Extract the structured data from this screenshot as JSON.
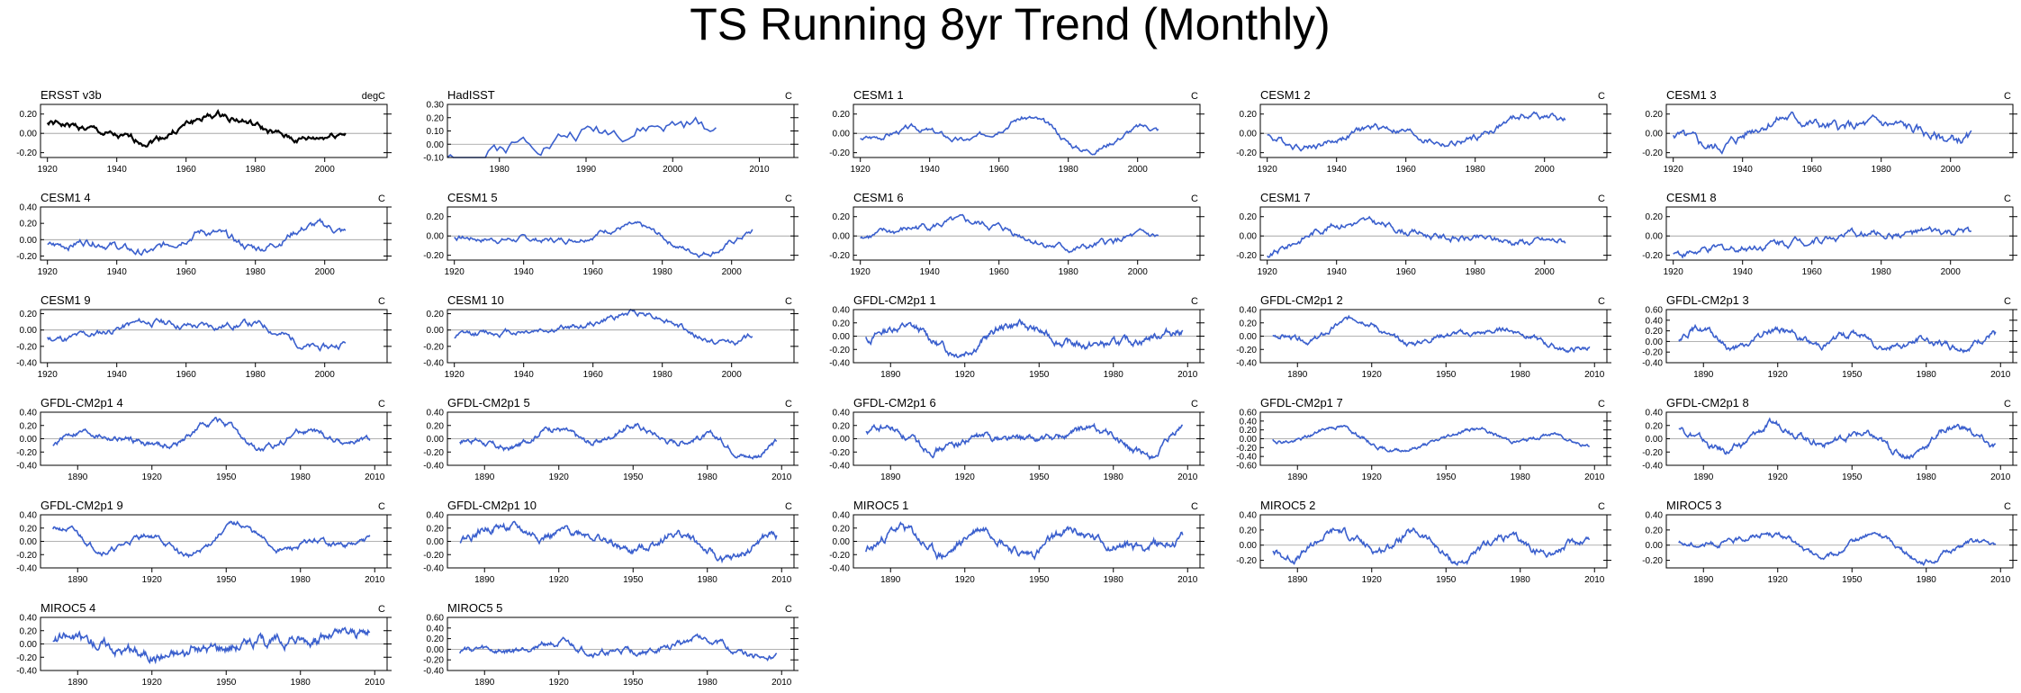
{
  "figure": {
    "title": "TS Running 8yr Trend (Monthly)",
    "line_color_obs": "#000000",
    "line_color_model": "#3a5fcd",
    "zero_line_color": "#999999"
  },
  "chart_data": [
    {
      "type": "line",
      "title": "ERSST v3b",
      "units": "degC",
      "obs": true,
      "xlim": [
        1918,
        2018
      ],
      "x_start": 1920,
      "x_end": 2006,
      "xticks": [
        1920,
        1940,
        1960,
        1980,
        2000
      ],
      "ylim": [
        -0.25,
        0.3
      ],
      "yticks": [
        0.2,
        0.0,
        -0.2
      ],
      "ytick_labels": [
        "0.20",
        "0.00",
        "-0.20"
      ],
      "seed": 1,
      "amp": 0.23
    },
    {
      "type": "line",
      "title": "HadISST",
      "units": "C",
      "obs": false,
      "xlim": [
        1974,
        2014
      ],
      "x_start": 1974,
      "x_end": 2005,
      "xticks": [
        1980,
        1990,
        2000,
        2010
      ],
      "ylim": [
        -0.1,
        0.3
      ],
      "yticks": [
        0.3,
        0.2,
        0.1,
        0.0,
        -0.1
      ],
      "ytick_labels": [
        "0.30",
        "0.20",
        "0.10",
        "0.00",
        "-0.10"
      ],
      "seed": 2,
      "amp": 0.2
    },
    {
      "type": "line",
      "title": "CESM1 1",
      "units": "C",
      "obs": false,
      "xlim": [
        1918,
        2018
      ],
      "x_start": 1920,
      "x_end": 2006,
      "xticks": [
        1920,
        1940,
        1960,
        1980,
        2000
      ],
      "ylim": [
        -0.25,
        0.3
      ],
      "yticks": [
        0.2,
        0.0,
        -0.2
      ],
      "ytick_labels": [
        "0.20",
        "0.00",
        "-0.20"
      ],
      "seed": 3,
      "amp": 0.22
    },
    {
      "type": "line",
      "title": "CESM1 2",
      "units": "C",
      "obs": false,
      "xlim": [
        1918,
        2018
      ],
      "x_start": 1920,
      "x_end": 2006,
      "xticks": [
        1920,
        1940,
        1960,
        1980,
        2000
      ],
      "ylim": [
        -0.25,
        0.3
      ],
      "yticks": [
        0.2,
        0.0,
        -0.2
      ],
      "ytick_labels": [
        "0.20",
        "0.00",
        "-0.20"
      ],
      "seed": 4,
      "amp": 0.22
    },
    {
      "type": "line",
      "title": "CESM1 3",
      "units": "C",
      "obs": false,
      "xlim": [
        1918,
        2018
      ],
      "x_start": 1920,
      "x_end": 2006,
      "xticks": [
        1920,
        1940,
        1960,
        1980,
        2000
      ],
      "ylim": [
        -0.25,
        0.3
      ],
      "yticks": [
        0.2,
        0.0,
        -0.2
      ],
      "ytick_labels": [
        "0.20",
        "0.00",
        "-0.20"
      ],
      "seed": 5,
      "amp": 0.22
    },
    {
      "type": "line",
      "title": "CESM1 4",
      "units": "C",
      "obs": false,
      "xlim": [
        1918,
        2018
      ],
      "x_start": 1920,
      "x_end": 2006,
      "xticks": [
        1920,
        1940,
        1960,
        1980,
        2000
      ],
      "ylim": [
        -0.25,
        0.4
      ],
      "yticks": [
        0.4,
        0.2,
        0.0,
        -0.2
      ],
      "ytick_labels": [
        "0.40",
        "0.20",
        "0.00",
        "-0.20"
      ],
      "seed": 6,
      "amp": 0.25
    },
    {
      "type": "line",
      "title": "CESM1 5",
      "units": "C",
      "obs": false,
      "xlim": [
        1918,
        2018
      ],
      "x_start": 1920,
      "x_end": 2006,
      "xticks": [
        1920,
        1940,
        1960,
        1980,
        2000
      ],
      "ylim": [
        -0.25,
        0.3
      ],
      "yticks": [
        0.2,
        0.0,
        -0.2
      ],
      "ytick_labels": [
        "0.20",
        "0.00",
        "-0.20"
      ],
      "seed": 7,
      "amp": 0.22
    },
    {
      "type": "line",
      "title": "CESM1 6",
      "units": "C",
      "obs": false,
      "xlim": [
        1918,
        2018
      ],
      "x_start": 1920,
      "x_end": 2006,
      "xticks": [
        1920,
        1940,
        1960,
        1980,
        2000
      ],
      "ylim": [
        -0.25,
        0.3
      ],
      "yticks": [
        0.2,
        0.0,
        -0.2
      ],
      "ytick_labels": [
        "0.20",
        "0.00",
        "-0.20"
      ],
      "seed": 8,
      "amp": 0.22
    },
    {
      "type": "line",
      "title": "CESM1 7",
      "units": "C",
      "obs": false,
      "xlim": [
        1918,
        2018
      ],
      "x_start": 1920,
      "x_end": 2006,
      "xticks": [
        1920,
        1940,
        1960,
        1980,
        2000
      ],
      "ylim": [
        -0.25,
        0.3
      ],
      "yticks": [
        0.2,
        0.0,
        -0.2
      ],
      "ytick_labels": [
        "0.20",
        "0.00",
        "-0.20"
      ],
      "seed": 9,
      "amp": 0.22
    },
    {
      "type": "line",
      "title": "CESM1 8",
      "units": "C",
      "obs": false,
      "xlim": [
        1918,
        2018
      ],
      "x_start": 1920,
      "x_end": 2006,
      "xticks": [
        1920,
        1940,
        1960,
        1980,
        2000
      ],
      "ylim": [
        -0.25,
        0.3
      ],
      "yticks": [
        0.2,
        0.0,
        -0.2
      ],
      "ytick_labels": [
        "0.20",
        "0.00",
        "-0.20"
      ],
      "seed": 10,
      "amp": 0.22
    },
    {
      "type": "line",
      "title": "CESM1 9",
      "units": "C",
      "obs": false,
      "xlim": [
        1918,
        2018
      ],
      "x_start": 1920,
      "x_end": 2006,
      "xticks": [
        1920,
        1940,
        1960,
        1980,
        2000
      ],
      "ylim": [
        -0.4,
        0.25
      ],
      "yticks": [
        0.2,
        0.0,
        -0.2,
        -0.4
      ],
      "ytick_labels": [
        "0.20",
        "0.00",
        "-0.20",
        "-0.40"
      ],
      "seed": 11,
      "amp": 0.25
    },
    {
      "type": "line",
      "title": "CESM1 10",
      "units": "C",
      "obs": false,
      "xlim": [
        1918,
        2018
      ],
      "x_start": 1920,
      "x_end": 2006,
      "xticks": [
        1920,
        1940,
        1960,
        1980,
        2000
      ],
      "ylim": [
        -0.4,
        0.25
      ],
      "yticks": [
        0.2,
        0.0,
        -0.2,
        -0.4
      ],
      "ytick_labels": [
        "0.20",
        "0.00",
        "-0.20",
        "-0.40"
      ],
      "seed": 12,
      "amp": 0.25
    },
    {
      "type": "line",
      "title": "GFDL-CM2p1 1",
      "units": "C",
      "obs": false,
      "xlim": [
        1875,
        2015
      ],
      "x_start": 1880,
      "x_end": 2008,
      "xticks": [
        1890,
        1920,
        1950,
        1980,
        2010
      ],
      "ylim": [
        -0.4,
        0.4
      ],
      "yticks": [
        0.4,
        0.2,
        0.0,
        -0.2,
        -0.4
      ],
      "ytick_labels": [
        "0.40",
        "0.20",
        "0.00",
        "-0.20",
        "-0.40"
      ],
      "seed": 13,
      "amp": 0.32
    },
    {
      "type": "line",
      "title": "GFDL-CM2p1 2",
      "units": "C",
      "obs": false,
      "xlim": [
        1875,
        2015
      ],
      "x_start": 1880,
      "x_end": 2008,
      "xticks": [
        1890,
        1920,
        1950,
        1980,
        2010
      ],
      "ylim": [
        -0.4,
        0.4
      ],
      "yticks": [
        0.4,
        0.2,
        0.0,
        -0.2,
        -0.4
      ],
      "ytick_labels": [
        "0.40",
        "0.20",
        "0.00",
        "-0.20",
        "-0.40"
      ],
      "seed": 14,
      "amp": 0.3
    },
    {
      "type": "line",
      "title": "GFDL-CM2p1 3",
      "units": "C",
      "obs": false,
      "xlim": [
        1875,
        2015
      ],
      "x_start": 1880,
      "x_end": 2008,
      "xticks": [
        1890,
        1920,
        1950,
        1980,
        2010
      ],
      "ylim": [
        -0.4,
        0.6
      ],
      "yticks": [
        0.6,
        0.4,
        0.2,
        0.0,
        -0.2,
        -0.4
      ],
      "ytick_labels": [
        "0.60",
        "0.40",
        "0.20",
        "0.00",
        "-0.20",
        "-0.40"
      ],
      "seed": 15,
      "amp": 0.3
    },
    {
      "type": "line",
      "title": "GFDL-CM2p1 4",
      "units": "C",
      "obs": false,
      "xlim": [
        1875,
        2015
      ],
      "x_start": 1880,
      "x_end": 2008,
      "xticks": [
        1890,
        1920,
        1950,
        1980,
        2010
      ],
      "ylim": [
        -0.4,
        0.4
      ],
      "yticks": [
        0.4,
        0.2,
        0.0,
        -0.2,
        -0.4
      ],
      "ytick_labels": [
        "0.40",
        "0.20",
        "0.00",
        "-0.20",
        "-0.40"
      ],
      "seed": 16,
      "amp": 0.32
    },
    {
      "type": "line",
      "title": "GFDL-CM2p1 5",
      "units": "C",
      "obs": false,
      "xlim": [
        1875,
        2015
      ],
      "x_start": 1880,
      "x_end": 2008,
      "xticks": [
        1890,
        1920,
        1950,
        1980,
        2010
      ],
      "ylim": [
        -0.4,
        0.4
      ],
      "yticks": [
        0.4,
        0.2,
        0.0,
        -0.2,
        -0.4
      ],
      "ytick_labels": [
        "0.40",
        "0.20",
        "0.00",
        "-0.20",
        "-0.40"
      ],
      "seed": 17,
      "amp": 0.3
    },
    {
      "type": "line",
      "title": "GFDL-CM2p1 6",
      "units": "C",
      "obs": false,
      "xlim": [
        1875,
        2015
      ],
      "x_start": 1880,
      "x_end": 2008,
      "xticks": [
        1890,
        1920,
        1950,
        1980,
        2010
      ],
      "ylim": [
        -0.4,
        0.4
      ],
      "yticks": [
        0.4,
        0.2,
        0.0,
        -0.2,
        -0.4
      ],
      "ytick_labels": [
        "0.40",
        "0.20",
        "0.00",
        "-0.20",
        "-0.40"
      ],
      "seed": 18,
      "amp": 0.3
    },
    {
      "type": "line",
      "title": "GFDL-CM2p1 7",
      "units": "C",
      "obs": false,
      "xlim": [
        1875,
        2015
      ],
      "x_start": 1880,
      "x_end": 2008,
      "xticks": [
        1890,
        1920,
        1950,
        1980,
        2010
      ],
      "ylim": [
        -0.6,
        0.6
      ],
      "yticks": [
        0.6,
        0.4,
        0.2,
        0.0,
        -0.2,
        -0.4,
        -0.6
      ],
      "ytick_labels": [
        "0.60",
        "0.40",
        "0.20",
        "0.00",
        "-0.20",
        "-0.40",
        "-0.60"
      ],
      "seed": 19,
      "amp": 0.3
    },
    {
      "type": "line",
      "title": "GFDL-CM2p1 8",
      "units": "C",
      "obs": false,
      "xlim": [
        1875,
        2015
      ],
      "x_start": 1880,
      "x_end": 2008,
      "xticks": [
        1890,
        1920,
        1950,
        1980,
        2010
      ],
      "ylim": [
        -0.4,
        0.4
      ],
      "yticks": [
        0.4,
        0.2,
        0.0,
        -0.2,
        -0.4
      ],
      "ytick_labels": [
        "0.40",
        "0.20",
        "0.00",
        "-0.20",
        "-0.40"
      ],
      "seed": 20,
      "amp": 0.3
    },
    {
      "type": "line",
      "title": "GFDL-CM2p1 9",
      "units": "C",
      "obs": false,
      "xlim": [
        1875,
        2015
      ],
      "x_start": 1880,
      "x_end": 2008,
      "xticks": [
        1890,
        1920,
        1950,
        1980,
        2010
      ],
      "ylim": [
        -0.4,
        0.4
      ],
      "yticks": [
        0.4,
        0.2,
        0.0,
        -0.2,
        -0.4
      ],
      "ytick_labels": [
        "0.40",
        "0.20",
        "0.00",
        "-0.20",
        "-0.40"
      ],
      "seed": 21,
      "amp": 0.3
    },
    {
      "type": "line",
      "title": "GFDL-CM2p1 10",
      "units": "C",
      "obs": false,
      "xlim": [
        1875,
        2015
      ],
      "x_start": 1880,
      "x_end": 2008,
      "xticks": [
        1890,
        1920,
        1950,
        1980,
        2010
      ],
      "ylim": [
        -0.4,
        0.4
      ],
      "yticks": [
        0.4,
        0.2,
        0.0,
        -0.2,
        -0.4
      ],
      "ytick_labels": [
        "0.40",
        "0.20",
        "0.00",
        "-0.20",
        "-0.40"
      ],
      "seed": 22,
      "amp": 0.3
    },
    {
      "type": "line",
      "title": "MIROC5 1",
      "units": "C",
      "obs": false,
      "xlim": [
        1875,
        2015
      ],
      "x_start": 1880,
      "x_end": 2008,
      "xticks": [
        1890,
        1920,
        1950,
        1980,
        2010
      ],
      "ylim": [
        -0.4,
        0.4
      ],
      "yticks": [
        0.4,
        0.2,
        0.0,
        -0.2,
        -0.4
      ],
      "ytick_labels": [
        "0.40",
        "0.20",
        "0.00",
        "-0.20",
        "-0.40"
      ],
      "seed": 23,
      "amp": 0.28
    },
    {
      "type": "line",
      "title": "MIROC5 2",
      "units": "C",
      "obs": false,
      "xlim": [
        1875,
        2015
      ],
      "x_start": 1880,
      "x_end": 2008,
      "xticks": [
        1890,
        1920,
        1950,
        1980,
        2010
      ],
      "ylim": [
        -0.3,
        0.4
      ],
      "yticks": [
        0.4,
        0.2,
        0.0,
        -0.2
      ],
      "ytick_labels": [
        "0.40",
        "0.20",
        "0.00",
        "-0.20"
      ],
      "seed": 24,
      "amp": 0.26
    },
    {
      "type": "line",
      "title": "MIROC5 3",
      "units": "C",
      "obs": false,
      "xlim": [
        1875,
        2015
      ],
      "x_start": 1880,
      "x_end": 2008,
      "xticks": [
        1890,
        1920,
        1950,
        1980,
        2010
      ],
      "ylim": [
        -0.3,
        0.4
      ],
      "yticks": [
        0.4,
        0.2,
        0.0,
        -0.2
      ],
      "ytick_labels": [
        "0.40",
        "0.20",
        "0.00",
        "-0.20"
      ],
      "seed": 25,
      "amp": 0.26
    },
    {
      "type": "line",
      "title": "MIROC5 4",
      "units": "C",
      "obs": false,
      "xlim": [
        1875,
        2015
      ],
      "x_start": 1880,
      "x_end": 2008,
      "xticks": [
        1890,
        1920,
        1950,
        1980,
        2010
      ],
      "ylim": [
        -0.4,
        0.4
      ],
      "yticks": [
        0.4,
        0.2,
        0.0,
        -0.2,
        -0.4
      ],
      "ytick_labels": [
        "0.40",
        "0.20",
        "0.00",
        "-0.20",
        "-0.40"
      ],
      "seed": 26,
      "amp": 0.28
    },
    {
      "type": "line",
      "title": "MIROC5 5",
      "units": "C",
      "obs": false,
      "xlim": [
        1875,
        2015
      ],
      "x_start": 1880,
      "x_end": 2008,
      "xticks": [
        1890,
        1920,
        1950,
        1980,
        2010
      ],
      "ylim": [
        -0.4,
        0.6
      ],
      "yticks": [
        0.6,
        0.4,
        0.2,
        0.0,
        -0.2,
        -0.4
      ],
      "ytick_labels": [
        "0.60",
        "0.40",
        "0.20",
        "0.00",
        "-0.20",
        "-0.40"
      ],
      "seed": 27,
      "amp": 0.28
    }
  ]
}
